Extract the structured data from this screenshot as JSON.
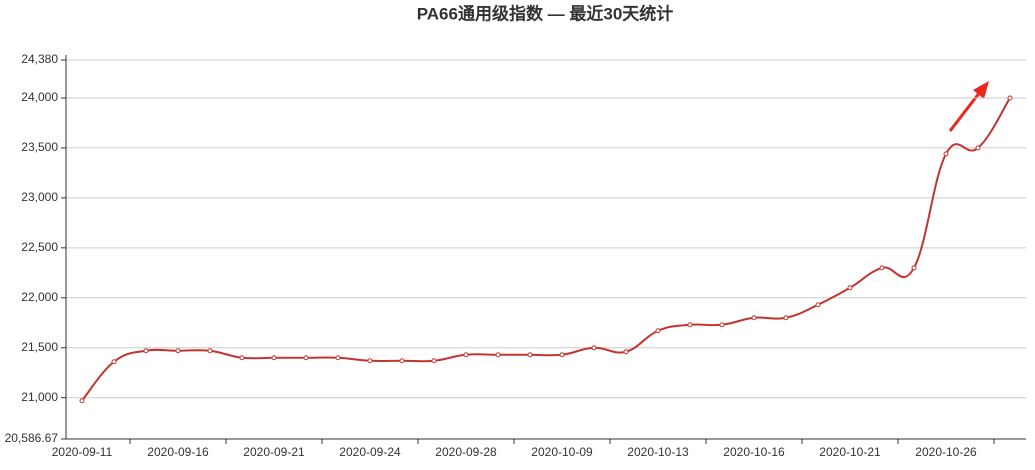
{
  "chart_data": {
    "type": "line",
    "title": "PA66通用级指数  —  最近30天统计",
    "categories": [
      "2020-09-11",
      null,
      null,
      "2020-09-16",
      null,
      null,
      "2020-09-21",
      null,
      null,
      "2020-09-24",
      null,
      null,
      "2020-09-28",
      null,
      null,
      "2020-10-09",
      null,
      null,
      "2020-10-13",
      null,
      null,
      "2020-10-16",
      null,
      null,
      "2020-10-21",
      null,
      null,
      "2020-10-26",
      null,
      null
    ],
    "series": [
      {
        "color": "#c23531",
        "values": [
          20970,
          21360,
          21470,
          21470,
          21470,
          21400,
          21400,
          21400,
          21400,
          21370,
          21370,
          21370,
          21430,
          21430,
          21430,
          21430,
          21500,
          21460,
          21670,
          21730,
          21730,
          21800,
          21800,
          21930,
          22100,
          22300,
          22300,
          23440,
          23500,
          24000
        ]
      }
    ],
    "ylim": [
      20586.67,
      24380
    ],
    "yticks": [
      {
        "value": 20586.67,
        "label": "20,586.67"
      },
      {
        "value": 21000,
        "label": "21,000"
      },
      {
        "value": 21500,
        "label": "21,500"
      },
      {
        "value": 22000,
        "label": "22,000"
      },
      {
        "value": 22500,
        "label": "22,500"
      },
      {
        "value": 23000,
        "label": "23,000"
      },
      {
        "value": 23500,
        "label": "23,500"
      },
      {
        "value": 24000,
        "label": "24,000"
      },
      {
        "value": 24380,
        "label": "24,380"
      }
    ],
    "grid": true
  }
}
